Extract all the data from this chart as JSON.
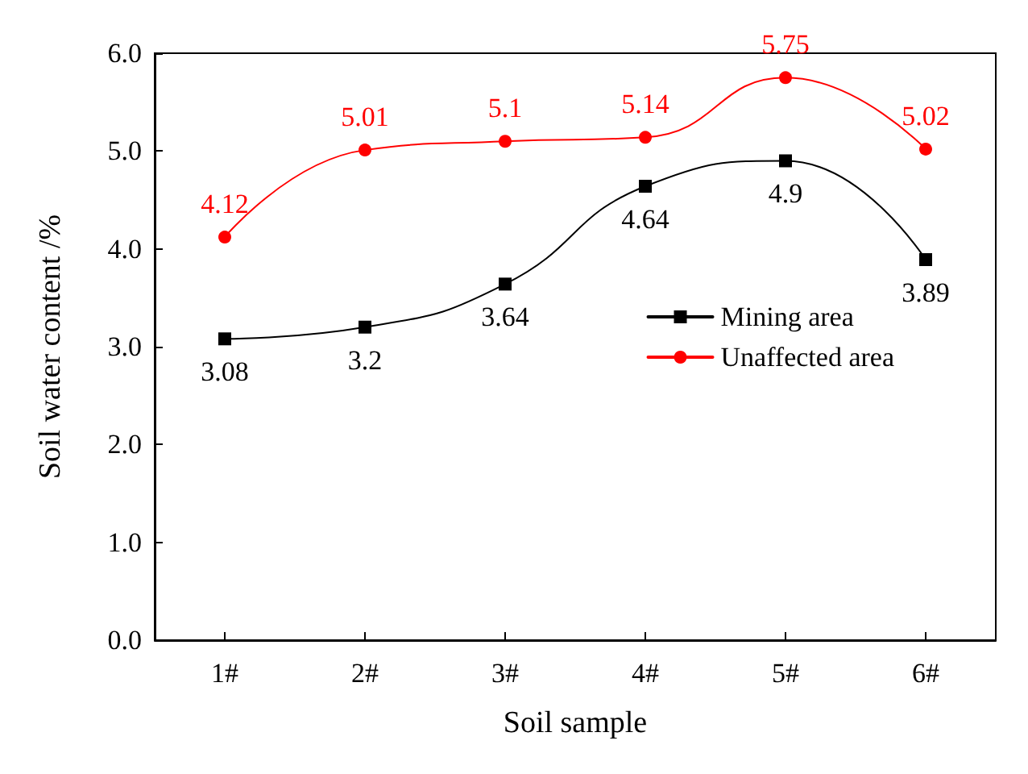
{
  "chart_data": {
    "type": "line",
    "xlabel": "Soil sample",
    "ylabel": "Soil water content /%",
    "categories": [
      "1#",
      "2#",
      "3#",
      "4#",
      "5#",
      "6#"
    ],
    "series": [
      {
        "name": "Mining area",
        "color": "#000000",
        "marker": "square",
        "values": [
          3.08,
          3.2,
          3.64,
          4.64,
          4.9,
          3.89
        ]
      },
      {
        "name": "Unaffected area",
        "color": "#ff0000",
        "marker": "circle",
        "values": [
          4.12,
          5.01,
          5.1,
          5.14,
          5.75,
          5.02
        ]
      }
    ],
    "ylim": [
      0,
      6
    ],
    "yticks": [
      {
        "value": 0,
        "label": "0.0"
      },
      {
        "value": 1,
        "label": "1.0"
      },
      {
        "value": 2,
        "label": "2.0"
      },
      {
        "value": 3,
        "label": "3.0"
      },
      {
        "value": 4,
        "label": "4.0"
      },
      {
        "value": 5,
        "label": "5.0"
      },
      {
        "value": 6,
        "label": "6.0"
      }
    ],
    "data_labels": true,
    "grid": false,
    "legend": "right",
    "line_style": "solid"
  }
}
